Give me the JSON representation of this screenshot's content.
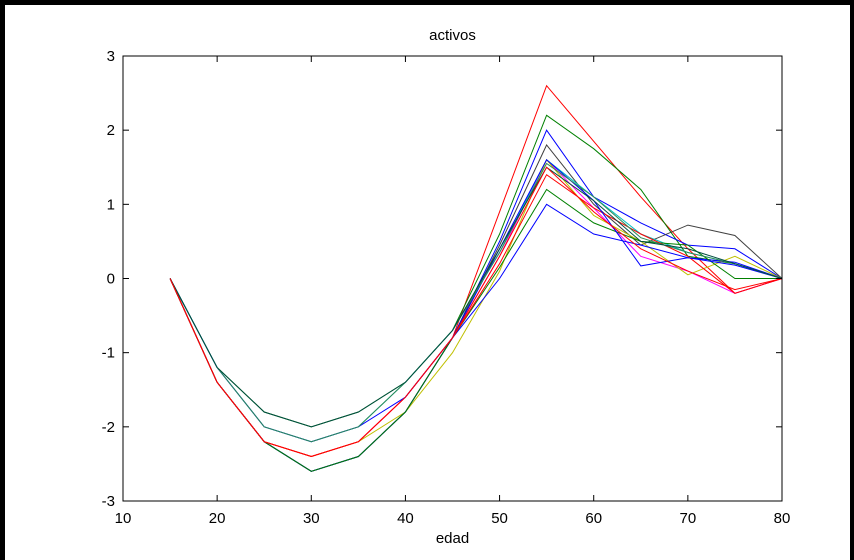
{
  "chart_data": {
    "type": "line",
    "title": "activos",
    "xlabel": "edad",
    "ylabel": "",
    "xlim": [
      10,
      80
    ],
    "ylim": [
      -3,
      3
    ],
    "x": [
      15,
      20,
      25,
      30,
      35,
      40,
      45,
      50,
      55,
      60,
      65,
      70,
      75,
      80
    ],
    "xticks": [
      10,
      20,
      30,
      40,
      50,
      60,
      70,
      80
    ],
    "yticks": [
      -3,
      -2,
      -1,
      0,
      1,
      2,
      3
    ],
    "grid": false,
    "series": [
      {
        "color": "#ff0000",
        "values": [
          0,
          -1.4,
          -2.2,
          -2.4,
          -2.2,
          -1.6,
          -0.8,
          0.9,
          2.6,
          1.85,
          1.1,
          0.4,
          -0.2,
          0
        ]
      },
      {
        "color": "#008000",
        "values": [
          0,
          -1.2,
          -1.8,
          -2.0,
          -1.8,
          -1.4,
          -0.7,
          0.6,
          2.2,
          1.75,
          1.2,
          0.3,
          0.2,
          0
        ]
      },
      {
        "color": "#0000ff",
        "values": [
          0,
          -1.4,
          -2.2,
          -2.6,
          -2.4,
          -1.8,
          -0.8,
          0.5,
          2.0,
          1.1,
          0.75,
          0.45,
          0.4,
          0
        ]
      },
      {
        "color": "#404040",
        "values": [
          0,
          -1.4,
          -2.2,
          -2.6,
          -2.4,
          -1.8,
          -0.8,
          0.45,
          1.8,
          1.0,
          0.45,
          0.72,
          0.58,
          0
        ]
      },
      {
        "color": "#ff00ff",
        "values": [
          0,
          -1.4,
          -2.2,
          -2.4,
          -2.2,
          -1.6,
          -0.8,
          0.3,
          1.6,
          0.95,
          0.3,
          0.1,
          -0.2,
          0
        ]
      },
      {
        "color": "#00bfbf",
        "values": [
          0,
          -1.2,
          -2.0,
          -2.2,
          -2.0,
          -1.4,
          -0.7,
          0.35,
          1.6,
          1.1,
          0.6,
          0.35,
          0.2,
          0
        ]
      },
      {
        "color": "#bfbf00",
        "values": [
          0,
          -1.4,
          -2.2,
          -2.4,
          -2.2,
          -1.8,
          -1.0,
          0.1,
          1.6,
          0.85,
          0.5,
          0.05,
          0.3,
          0
        ]
      },
      {
        "color": "#0000ff",
        "values": [
          0,
          -1.4,
          -2.2,
          -2.6,
          -2.4,
          -1.8,
          -0.8,
          0.0,
          1.0,
          0.6,
          0.45,
          0.28,
          0.22,
          0
        ]
      },
      {
        "color": "#008000",
        "values": [
          0,
          -1.4,
          -2.2,
          -2.6,
          -2.4,
          -1.8,
          -0.8,
          0.15,
          1.2,
          0.75,
          0.5,
          0.45,
          0.0,
          0
        ]
      },
      {
        "color": "#ff0000",
        "values": [
          0,
          -1.4,
          -2.2,
          -2.4,
          -2.2,
          -1.6,
          -0.8,
          0.2,
          1.4,
          0.95,
          0.6,
          0.3,
          -0.2,
          0
        ]
      },
      {
        "color": "#0000ff",
        "values": [
          0,
          -1.2,
          -2.0,
          -2.2,
          -2.0,
          -1.6,
          -0.8,
          0.4,
          1.6,
          1.05,
          0.17,
          0.28,
          0.18,
          0
        ]
      },
      {
        "color": "#2e8b57",
        "values": [
          0,
          -1.2,
          -2.0,
          -2.2,
          -2.0,
          -1.4,
          -0.7,
          0.35,
          1.55,
          1.1,
          0.55,
          0.35,
          0.2,
          0
        ]
      },
      {
        "color": "#004d40",
        "values": [
          0,
          -1.2,
          -1.8,
          -2.0,
          -1.8,
          -1.4,
          -0.7,
          0.4,
          1.5,
          1.05,
          0.5,
          0.4,
          0.2,
          0
        ]
      },
      {
        "color": "#ff0000",
        "values": [
          0,
          -1.4,
          -2.2,
          -2.4,
          -2.2,
          -1.6,
          -0.8,
          0.3,
          1.5,
          0.9,
          0.4,
          0.1,
          -0.15,
          0
        ]
      }
    ]
  }
}
